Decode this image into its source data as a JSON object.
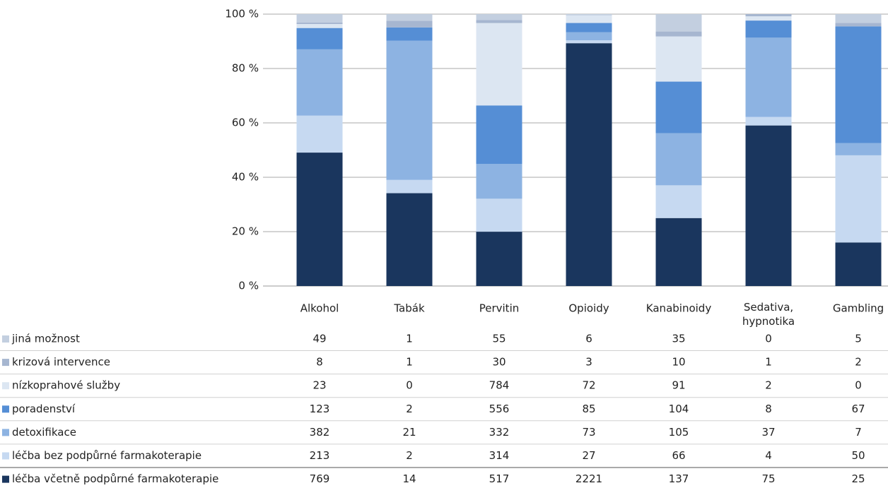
{
  "chart_data": {
    "type": "bar",
    "stacking": "percent",
    "categories": [
      "Alkohol",
      "Tabák",
      "Pervitin",
      "Opioidy",
      "Kanabinoidy",
      "Sedativa, hypnotika",
      "Gambling"
    ],
    "series": [
      {
        "name": "jiná možnost",
        "color": "#c3cfe0",
        "values": [
          49,
          1,
          55,
          6,
          35,
          0,
          5
        ]
      },
      {
        "name": "krizová intervence",
        "color": "#a6b6d0",
        "values": [
          8,
          1,
          30,
          3,
          10,
          1,
          2
        ]
      },
      {
        "name": "nízkoprahové služby",
        "color": "#dce6f2",
        "values": [
          23,
          0,
          784,
          72,
          91,
          2,
          0
        ]
      },
      {
        "name": "poradenství",
        "color": "#558ed5",
        "values": [
          123,
          2,
          556,
          85,
          104,
          8,
          67
        ]
      },
      {
        "name": "detoxifikace",
        "color": "#8db3e2",
        "values": [
          382,
          21,
          332,
          73,
          105,
          37,
          7
        ]
      },
      {
        "name": "léčba bez podpůrné farmakoterapie",
        "color": "#c6d9f1",
        "values": [
          213,
          2,
          314,
          27,
          66,
          4,
          50
        ]
      },
      {
        "name": "léčba včetně podpůrné farmakoterapie",
        "color": "#1a365e",
        "values": [
          769,
          14,
          517,
          2221,
          137,
          75,
          25
        ]
      }
    ],
    "ylim": [
      0,
      100
    ],
    "yticks": [
      {
        "value": 0,
        "label": "0 %"
      },
      {
        "value": 20,
        "label": "20 %"
      },
      {
        "value": 40,
        "label": "40 %"
      },
      {
        "value": 60,
        "label": "60 %"
      },
      {
        "value": 80,
        "label": "80 %"
      },
      {
        "value": 100,
        "label": "100 %"
      }
    ],
    "grid": true,
    "data_table": true
  }
}
